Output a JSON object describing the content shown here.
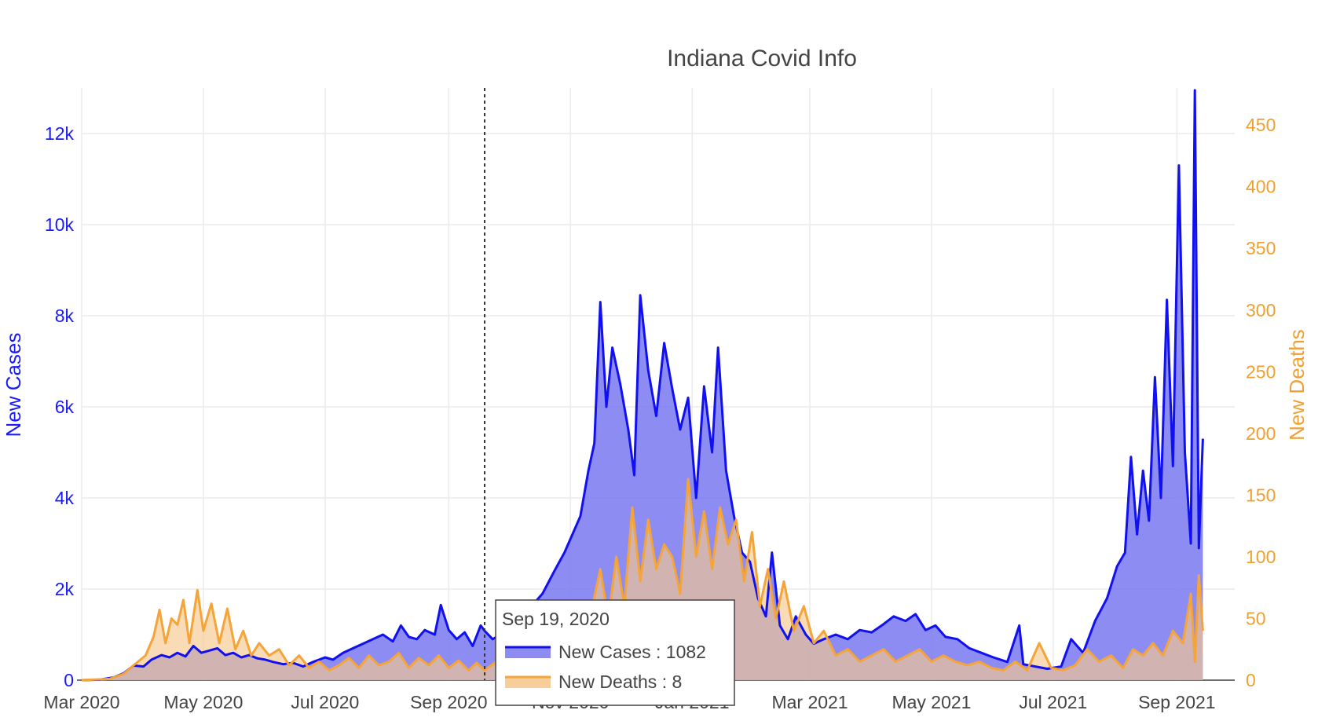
{
  "chart_data": {
    "type": "area",
    "title": "Indiana Covid Info",
    "colors": {
      "cases": "#1010f0",
      "cases_fill": "#7f7ff2",
      "deaths": "#f5a43a",
      "deaths_fill": "#f6c98e",
      "overlap_fill": "#b58a98"
    },
    "x_axis": {
      "range": [
        "2020-03-01",
        "2021-09-30"
      ],
      "ticks": [
        "Mar 2020",
        "May 2020",
        "Jul 2020",
        "Sep 2020",
        "Nov 2020",
        "Jan 2021",
        "Mar 2021",
        "May 2021",
        "Jul 2021",
        "Sep 2021"
      ]
    },
    "y_left": {
      "title": "New Cases",
      "range": [
        0,
        13000
      ],
      "ticks": [
        "0",
        "2k",
        "4k",
        "6k",
        "8k",
        "10k",
        "12k"
      ]
    },
    "y_right": {
      "title": "New Deaths",
      "range": [
        0,
        480
      ],
      "ticks": [
        "0",
        "50",
        "100",
        "150",
        "200",
        "250",
        "300",
        "350",
        "400",
        "450"
      ]
    },
    "grid": true,
    "series": [
      {
        "name": "New Cases",
        "axis": "left",
        "points": [
          [
            "2020-03-01",
            0
          ],
          [
            "2020-03-10",
            10
          ],
          [
            "2020-03-17",
            60
          ],
          [
            "2020-03-22",
            150
          ],
          [
            "2020-03-27",
            320
          ],
          [
            "2020-04-01",
            300
          ],
          [
            "2020-04-05",
            450
          ],
          [
            "2020-04-10",
            550
          ],
          [
            "2020-04-14",
            500
          ],
          [
            "2020-04-18",
            600
          ],
          [
            "2020-04-22",
            520
          ],
          [
            "2020-04-26",
            750
          ],
          [
            "2020-04-30",
            600
          ],
          [
            "2020-05-04",
            650
          ],
          [
            "2020-05-08",
            700
          ],
          [
            "2020-05-12",
            550
          ],
          [
            "2020-05-16",
            600
          ],
          [
            "2020-05-20",
            500
          ],
          [
            "2020-05-24",
            550
          ],
          [
            "2020-05-28",
            480
          ],
          [
            "2020-06-01",
            450
          ],
          [
            "2020-06-05",
            400
          ],
          [
            "2020-06-10",
            350
          ],
          [
            "2020-06-15",
            380
          ],
          [
            "2020-06-20",
            300
          ],
          [
            "2020-06-25",
            400
          ],
          [
            "2020-07-01",
            500
          ],
          [
            "2020-07-05",
            450
          ],
          [
            "2020-07-10",
            600
          ],
          [
            "2020-07-15",
            700
          ],
          [
            "2020-07-20",
            800
          ],
          [
            "2020-07-25",
            900
          ],
          [
            "2020-07-30",
            1000
          ],
          [
            "2020-08-04",
            850
          ],
          [
            "2020-08-08",
            1200
          ],
          [
            "2020-08-12",
            950
          ],
          [
            "2020-08-16",
            900
          ],
          [
            "2020-08-20",
            1100
          ],
          [
            "2020-08-25",
            1000
          ],
          [
            "2020-08-28",
            1650
          ],
          [
            "2020-09-01",
            1100
          ],
          [
            "2020-09-05",
            900
          ],
          [
            "2020-09-09",
            1050
          ],
          [
            "2020-09-13",
            750
          ],
          [
            "2020-09-17",
            1200
          ],
          [
            "2020-09-19",
            1082
          ],
          [
            "2020-09-23",
            900
          ],
          [
            "2020-09-27",
            1000
          ],
          [
            "2020-10-01",
            1100
          ],
          [
            "2020-10-06",
            1300
          ],
          [
            "2020-10-12",
            1600
          ],
          [
            "2020-10-18",
            1900
          ],
          [
            "2020-10-24",
            2400
          ],
          [
            "2020-10-29",
            2800
          ],
          [
            "2020-11-02",
            3200
          ],
          [
            "2020-11-06",
            3600
          ],
          [
            "2020-11-10",
            4600
          ],
          [
            "2020-11-13",
            5200
          ],
          [
            "2020-11-16",
            8300
          ],
          [
            "2020-11-19",
            6000
          ],
          [
            "2020-11-22",
            7300
          ],
          [
            "2020-11-26",
            6500
          ],
          [
            "2020-11-30",
            5500
          ],
          [
            "2020-12-03",
            4500
          ],
          [
            "2020-12-06",
            8450
          ],
          [
            "2020-12-10",
            6800
          ],
          [
            "2020-12-14",
            5800
          ],
          [
            "2020-12-18",
            7400
          ],
          [
            "2020-12-22",
            6400
          ],
          [
            "2020-12-26",
            5500
          ],
          [
            "2020-12-30",
            6200
          ],
          [
            "2021-01-03",
            4000
          ],
          [
            "2021-01-07",
            6450
          ],
          [
            "2021-01-11",
            5000
          ],
          [
            "2021-01-14",
            7300
          ],
          [
            "2021-01-18",
            4600
          ],
          [
            "2021-01-22",
            3600
          ],
          [
            "2021-01-26",
            2800
          ],
          [
            "2021-01-30",
            2600
          ],
          [
            "2021-02-03",
            1800
          ],
          [
            "2021-02-07",
            1400
          ],
          [
            "2021-02-10",
            2800
          ],
          [
            "2021-02-14",
            1200
          ],
          [
            "2021-02-18",
            900
          ],
          [
            "2021-02-22",
            1400
          ],
          [
            "2021-02-27",
            1000
          ],
          [
            "2021-03-03",
            800
          ],
          [
            "2021-03-08",
            900
          ],
          [
            "2021-03-14",
            1000
          ],
          [
            "2021-03-20",
            900
          ],
          [
            "2021-03-26",
            1100
          ],
          [
            "2021-04-01",
            1050
          ],
          [
            "2021-04-06",
            1200
          ],
          [
            "2021-04-12",
            1400
          ],
          [
            "2021-04-18",
            1300
          ],
          [
            "2021-04-23",
            1450
          ],
          [
            "2021-04-28",
            1100
          ],
          [
            "2021-05-03",
            1200
          ],
          [
            "2021-05-08",
            950
          ],
          [
            "2021-05-14",
            900
          ],
          [
            "2021-05-20",
            700
          ],
          [
            "2021-05-26",
            600
          ],
          [
            "2021-06-01",
            500
          ],
          [
            "2021-06-08",
            400
          ],
          [
            "2021-06-14",
            1200
          ],
          [
            "2021-06-16",
            350
          ],
          [
            "2021-06-22",
            300
          ],
          [
            "2021-06-28",
            250
          ],
          [
            "2021-07-05",
            300
          ],
          [
            "2021-07-10",
            900
          ],
          [
            "2021-07-16",
            600
          ],
          [
            "2021-07-22",
            1300
          ],
          [
            "2021-07-28",
            1800
          ],
          [
            "2021-08-02",
            2500
          ],
          [
            "2021-08-06",
            2800
          ],
          [
            "2021-08-09",
            4900
          ],
          [
            "2021-08-12",
            3200
          ],
          [
            "2021-08-15",
            4600
          ],
          [
            "2021-08-18",
            3500
          ],
          [
            "2021-08-21",
            6650
          ],
          [
            "2021-08-24",
            4000
          ],
          [
            "2021-08-27",
            8350
          ],
          [
            "2021-08-30",
            4700
          ],
          [
            "2021-09-02",
            11300
          ],
          [
            "2021-09-05",
            5000
          ],
          [
            "2021-09-08",
            3000
          ],
          [
            "2021-09-10",
            12950
          ],
          [
            "2021-09-12",
            2900
          ],
          [
            "2021-09-14",
            5300
          ]
        ]
      },
      {
        "name": "New Deaths",
        "axis": "right",
        "points": [
          [
            "2020-03-01",
            0
          ],
          [
            "2020-03-15",
            1
          ],
          [
            "2020-03-22",
            5
          ],
          [
            "2020-03-27",
            12
          ],
          [
            "2020-04-02",
            20
          ],
          [
            "2020-04-06",
            35
          ],
          [
            "2020-04-09",
            57
          ],
          [
            "2020-04-12",
            30
          ],
          [
            "2020-04-15",
            50
          ],
          [
            "2020-04-18",
            45
          ],
          [
            "2020-04-21",
            65
          ],
          [
            "2020-04-24",
            30
          ],
          [
            "2020-04-28",
            73
          ],
          [
            "2020-05-01",
            40
          ],
          [
            "2020-05-05",
            62
          ],
          [
            "2020-05-09",
            30
          ],
          [
            "2020-05-13",
            58
          ],
          [
            "2020-05-17",
            25
          ],
          [
            "2020-05-21",
            40
          ],
          [
            "2020-05-25",
            20
          ],
          [
            "2020-05-29",
            30
          ],
          [
            "2020-06-03",
            20
          ],
          [
            "2020-06-08",
            25
          ],
          [
            "2020-06-13",
            12
          ],
          [
            "2020-06-18",
            20
          ],
          [
            "2020-06-23",
            10
          ],
          [
            "2020-06-28",
            15
          ],
          [
            "2020-07-03",
            8
          ],
          [
            "2020-07-08",
            12
          ],
          [
            "2020-07-13",
            18
          ],
          [
            "2020-07-18",
            10
          ],
          [
            "2020-07-23",
            20
          ],
          [
            "2020-07-28",
            12
          ],
          [
            "2020-08-02",
            15
          ],
          [
            "2020-08-07",
            22
          ],
          [
            "2020-08-12",
            10
          ],
          [
            "2020-08-17",
            18
          ],
          [
            "2020-08-22",
            12
          ],
          [
            "2020-08-27",
            20
          ],
          [
            "2020-09-01",
            10
          ],
          [
            "2020-09-06",
            16
          ],
          [
            "2020-09-11",
            8
          ],
          [
            "2020-09-15",
            14
          ],
          [
            "2020-09-19",
            8
          ],
          [
            "2020-09-24",
            14
          ],
          [
            "2020-09-29",
            20
          ],
          [
            "2020-10-05",
            18
          ],
          [
            "2020-10-11",
            25
          ],
          [
            "2020-10-17",
            20
          ],
          [
            "2020-10-23",
            30
          ],
          [
            "2020-10-29",
            25
          ],
          [
            "2020-11-04",
            40
          ],
          [
            "2020-11-10",
            45
          ],
          [
            "2020-11-16",
            90
          ],
          [
            "2020-11-20",
            50
          ],
          [
            "2020-11-24",
            100
          ],
          [
            "2020-11-28",
            60
          ],
          [
            "2020-12-02",
            140
          ],
          [
            "2020-12-06",
            80
          ],
          [
            "2020-12-10",
            130
          ],
          [
            "2020-12-14",
            90
          ],
          [
            "2020-12-18",
            110
          ],
          [
            "2020-12-22",
            100
          ],
          [
            "2020-12-26",
            70
          ],
          [
            "2020-12-30",
            163
          ],
          [
            "2021-01-03",
            100
          ],
          [
            "2021-01-07",
            137
          ],
          [
            "2021-01-11",
            90
          ],
          [
            "2021-01-15",
            140
          ],
          [
            "2021-01-19",
            110
          ],
          [
            "2021-01-23",
            130
          ],
          [
            "2021-01-27",
            80
          ],
          [
            "2021-01-31",
            120
          ],
          [
            "2021-02-04",
            60
          ],
          [
            "2021-02-08",
            90
          ],
          [
            "2021-02-12",
            50
          ],
          [
            "2021-02-16",
            80
          ],
          [
            "2021-02-21",
            40
          ],
          [
            "2021-02-26",
            60
          ],
          [
            "2021-03-03",
            30
          ],
          [
            "2021-03-08",
            40
          ],
          [
            "2021-03-14",
            20
          ],
          [
            "2021-03-20",
            25
          ],
          [
            "2021-03-26",
            15
          ],
          [
            "2021-04-01",
            20
          ],
          [
            "2021-04-07",
            25
          ],
          [
            "2021-04-13",
            15
          ],
          [
            "2021-04-19",
            20
          ],
          [
            "2021-04-25",
            25
          ],
          [
            "2021-05-01",
            15
          ],
          [
            "2021-05-07",
            20
          ],
          [
            "2021-05-13",
            15
          ],
          [
            "2021-05-19",
            12
          ],
          [
            "2021-05-25",
            15
          ],
          [
            "2021-05-31",
            10
          ],
          [
            "2021-06-06",
            8
          ],
          [
            "2021-06-12",
            15
          ],
          [
            "2021-06-18",
            8
          ],
          [
            "2021-06-24",
            30
          ],
          [
            "2021-06-30",
            10
          ],
          [
            "2021-07-06",
            8
          ],
          [
            "2021-07-12",
            12
          ],
          [
            "2021-07-18",
            25
          ],
          [
            "2021-07-24",
            15
          ],
          [
            "2021-07-30",
            20
          ],
          [
            "2021-08-05",
            10
          ],
          [
            "2021-08-10",
            25
          ],
          [
            "2021-08-15",
            20
          ],
          [
            "2021-08-20",
            30
          ],
          [
            "2021-08-25",
            20
          ],
          [
            "2021-08-30",
            40
          ],
          [
            "2021-09-04",
            30
          ],
          [
            "2021-09-08",
            70
          ],
          [
            "2021-09-10",
            15
          ],
          [
            "2021-09-12",
            85
          ],
          [
            "2021-09-14",
            40
          ]
        ]
      }
    ],
    "hover": {
      "date": "2020-09-19",
      "date_label": "Sep 19, 2020",
      "rows": [
        {
          "series": "New Cases",
          "text": "New Cases : 1082"
        },
        {
          "series": "New Deaths",
          "text": "New Deaths : 8"
        }
      ]
    }
  }
}
